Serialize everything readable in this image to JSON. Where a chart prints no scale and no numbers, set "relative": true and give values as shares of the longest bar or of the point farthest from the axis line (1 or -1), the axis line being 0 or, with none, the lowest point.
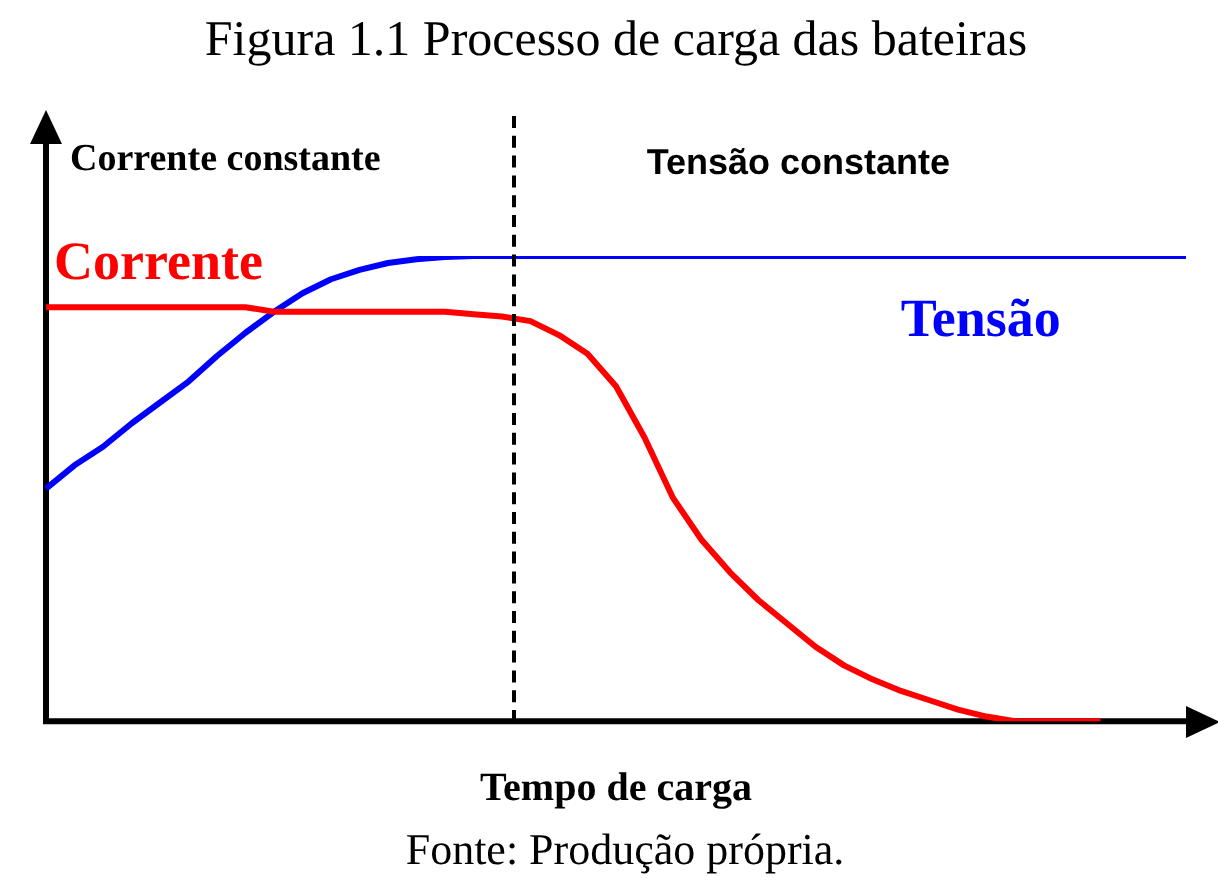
{
  "chart_data": {
    "type": "line",
    "title": "Figura 1.1 Processo de carga das bateiras",
    "xlabel": "Tempo de carga",
    "relative": true,
    "marker": "none",
    "line_style": "solid",
    "categories": [
      null,
      null,
      null,
      null,
      null,
      null,
      null,
      null,
      null,
      null,
      null,
      null,
      null,
      null,
      null,
      null,
      null,
      null,
      null,
      null,
      null,
      null,
      null,
      null,
      null,
      null,
      null,
      null,
      null,
      null,
      null,
      null,
      null,
      null,
      null,
      null,
      null,
      null,
      null,
      null,
      null
    ],
    "series": [
      {
        "name": "Corrente",
        "color": "#ff0000",
        "values": [
          0.89,
          0.89,
          0.89,
          0.89,
          0.89,
          0.89,
          0.89,
          0.89,
          0.88,
          0.88,
          0.88,
          0.88,
          0.88,
          0.88,
          0.88,
          0.875,
          0.87,
          0.86,
          0.83,
          0.79,
          0.72,
          0.61,
          0.48,
          0.39,
          0.32,
          0.26,
          0.21,
          0.16,
          0.12,
          0.09,
          0.065,
          0.045,
          0.025,
          0.01,
          0,
          0,
          0,
          0,
          null,
          null,
          null
        ]
      },
      {
        "name": "Tensão",
        "color": "#0000ff",
        "values": [
          0.5,
          0.55,
          0.59,
          0.64,
          0.685,
          0.73,
          0.785,
          0.835,
          0.88,
          0.92,
          0.95,
          0.97,
          0.985,
          0.993,
          0.998,
          1,
          1,
          1,
          1,
          1,
          1,
          1,
          1,
          1,
          1,
          1,
          1,
          1,
          1,
          1,
          1,
          1,
          1,
          1,
          1,
          1,
          1,
          1,
          1,
          1,
          1
        ]
      }
    ],
    "annotations": [
      "Corrente constante",
      "Tensão constante",
      "Fonte: Produção própria."
    ]
  }
}
